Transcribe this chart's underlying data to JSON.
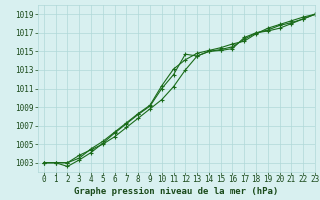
{
  "x": [
    0,
    1,
    2,
    3,
    4,
    5,
    6,
    7,
    8,
    9,
    10,
    11,
    12,
    13,
    14,
    15,
    16,
    17,
    18,
    19,
    20,
    21,
    22,
    23
  ],
  "line1": [
    1003.0,
    1003.0,
    1002.6,
    1003.3,
    1004.1,
    1005.1,
    1006.2,
    1007.2,
    1008.2,
    1009.1,
    1011.0,
    1012.5,
    1014.7,
    1014.5,
    1015.0,
    1015.2,
    1015.5,
    1016.3,
    1017.0,
    1017.2,
    1017.5,
    1018.0,
    1018.5,
    1019.0
  ],
  "line2": [
    1003.0,
    1003.0,
    1003.0,
    1003.8,
    1004.4,
    1005.0,
    1005.8,
    1006.8,
    1007.8,
    1008.8,
    1009.8,
    1011.2,
    1013.0,
    1014.5,
    1015.0,
    1015.1,
    1015.3,
    1016.5,
    1017.0,
    1017.3,
    1017.8,
    1018.1,
    1018.5,
    1019.0
  ],
  "line3": [
    1003.0,
    1003.0,
    1003.0,
    1003.5,
    1004.5,
    1005.3,
    1006.3,
    1007.3,
    1008.3,
    1009.2,
    1011.3,
    1013.1,
    1014.1,
    1014.8,
    1015.1,
    1015.4,
    1015.8,
    1016.1,
    1016.9,
    1017.5,
    1017.9,
    1018.3,
    1018.7,
    1019.0
  ],
  "line_color": "#1a6b1a",
  "marker": "+",
  "bg_color": "#d8f0f0",
  "grid_color": "#b0d8d8",
  "xlabel": "Graphe pression niveau de la mer (hPa)",
  "ylim": [
    1002,
    1020
  ],
  "xlim": [
    -0.5,
    23
  ],
  "yticks": [
    1003,
    1005,
    1007,
    1009,
    1011,
    1013,
    1015,
    1017,
    1019
  ],
  "xticks": [
    0,
    1,
    2,
    3,
    4,
    5,
    6,
    7,
    8,
    9,
    10,
    11,
    12,
    13,
    14,
    15,
    16,
    17,
    18,
    19,
    20,
    21,
    22,
    23
  ],
  "tick_color": "#1a4a1a",
  "label_fontsize": 5.5,
  "xlabel_fontsize": 6.5
}
